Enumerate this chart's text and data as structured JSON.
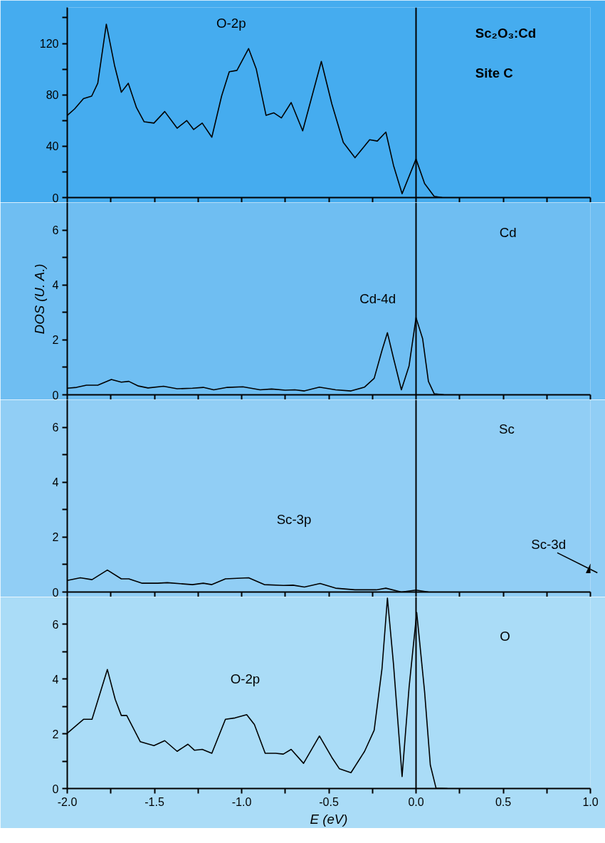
{
  "chart_data": [
    {
      "type": "line",
      "x": [
        -2.0,
        -1.958,
        -1.907,
        -1.86,
        -1.825,
        -1.776,
        -1.729,
        -1.69,
        -1.65,
        -1.603,
        -1.559,
        -1.503,
        -1.441,
        -1.37,
        -1.315,
        -1.275,
        -1.226,
        -1.171,
        -1.115,
        -1.071,
        -1.027,
        -0.96,
        -0.916,
        -0.86,
        -0.816,
        -0.772,
        -0.716,
        -0.65,
        -0.543,
        -0.483,
        -0.417,
        -0.35,
        -0.266,
        -0.222,
        -0.173,
        -0.129,
        -0.08,
        0.0,
        0.049,
        0.104,
        0.15
      ],
      "series": [
        {
          "color": "#000000",
          "values": [
            64,
            69,
            77,
            79,
            89,
            135,
            103,
            82,
            89,
            70,
            59,
            58,
            67,
            54,
            60,
            53,
            58,
            47,
            79,
            98,
            99,
            116,
            100,
            64,
            66,
            62,
            74,
            52,
            106,
            73,
            43,
            31,
            45,
            44,
            51,
            25,
            3,
            30,
            11,
            1,
            0
          ]
        }
      ],
      "xlim": [
        -2,
        1
      ],
      "xticks": [
        -2,
        {
          "value": -1.75,
          "label": null
        },
        -1.5,
        {
          "value": -1.25,
          "label": null
        },
        -1,
        {
          "value": -0.75,
          "label": null
        },
        -0.5,
        {
          "value": -0.25,
          "label": null
        },
        0,
        {
          "value": 0.25,
          "label": null
        },
        0.5,
        {
          "value": 0.75,
          "label": null
        },
        1
      ],
      "ylim": [
        0,
        148
      ],
      "yticks": [
        0,
        {
          "value": 20,
          "label": null
        },
        40,
        {
          "value": 60,
          "label": null
        },
        80,
        {
          "value": 100,
          "label": null
        },
        120,
        {
          "value": 140,
          "label": null
        }
      ],
      "tick_labels": "y",
      "grid": false,
      "marker": "none",
      "line_style": "solid",
      "ref_lines": [
        {
          "axis": "x",
          "value": 0,
          "color": "#000000"
        }
      ],
      "annotations": [
        "O-2p",
        "Sc₂O₃:Cd",
        "Site C"
      ]
    },
    {
      "type": "line",
      "x": [
        -2.0,
        -1.947,
        -1.89,
        -1.825,
        -1.747,
        -1.69,
        -1.647,
        -1.592,
        -1.537,
        -1.448,
        -1.37,
        -1.282,
        -1.22,
        -1.16,
        -1.082,
        -0.993,
        -0.894,
        -0.828,
        -0.75,
        -0.695,
        -0.64,
        -0.554,
        -0.461,
        -0.373,
        -0.295,
        -0.24,
        -0.195,
        -0.164,
        -0.129,
        -0.084,
        -0.04,
        0.0,
        0.038,
        0.071,
        0.104,
        0.16
      ],
      "series": [
        {
          "color": "#000000",
          "values": [
            0.24,
            0.27,
            0.35,
            0.35,
            0.56,
            0.46,
            0.49,
            0.32,
            0.25,
            0.31,
            0.22,
            0.24,
            0.27,
            0.18,
            0.27,
            0.29,
            0.18,
            0.21,
            0.17,
            0.18,
            0.14,
            0.28,
            0.18,
            0.14,
            0.28,
            0.6,
            1.62,
            2.26,
            1.33,
            0.18,
            1.05,
            2.81,
            2.04,
            0.49,
            0.04,
            0
          ]
        }
      ],
      "xlim": [
        -2,
        1
      ],
      "xticks": [
        -2,
        {
          "value": -1.75,
          "label": null
        },
        -1.5,
        {
          "value": -1.25,
          "label": null
        },
        -1,
        {
          "value": -0.75,
          "label": null
        },
        -0.5,
        {
          "value": -0.25,
          "label": null
        },
        0,
        {
          "value": 0.25,
          "label": null
        },
        0.5,
        {
          "value": 0.75,
          "label": null
        },
        1
      ],
      "ylim": [
        0,
        7
      ],
      "yticks": [
        0,
        {
          "value": 1,
          "label": null
        },
        2,
        {
          "value": 3,
          "label": null
        },
        4,
        {
          "value": 5,
          "label": null
        },
        6
      ],
      "ylabel": "DOS (U. A.)",
      "tick_labels": "y",
      "grid": false,
      "marker": "none",
      "line_style": "solid",
      "ref_lines": [
        {
          "axis": "x",
          "value": 0,
          "color": "#000000"
        }
      ],
      "annotations": [
        "Cd",
        "Cd-4d"
      ]
    },
    {
      "type": "line",
      "x": [
        -2.0,
        -1.925,
        -1.858,
        -1.77,
        -1.69,
        -1.647,
        -1.57,
        -1.481,
        -1.426,
        -1.282,
        -1.22,
        -1.171,
        -1.093,
        -0.96,
        -0.87,
        -0.76,
        -0.705,
        -0.64,
        -0.55,
        -0.461,
        -0.35,
        -0.228,
        -0.173,
        -0.084,
        0.0,
        0.071
      ],
      "series": [
        {
          "color": "#000000",
          "values": [
            0.42,
            0.52,
            0.45,
            0.8,
            0.48,
            0.48,
            0.32,
            0.32,
            0.34,
            0.27,
            0.32,
            0.27,
            0.48,
            0.52,
            0.27,
            0.24,
            0.25,
            0.18,
            0.31,
            0.14,
            0.08,
            0.08,
            0.14,
            0,
            0.07,
            0
          ]
        }
      ],
      "xlim": [
        -2,
        1
      ],
      "xticks": [
        -2,
        {
          "value": -1.75,
          "label": null
        },
        -1.5,
        {
          "value": -1.25,
          "label": null
        },
        -1,
        {
          "value": -0.75,
          "label": null
        },
        -0.5,
        {
          "value": -0.25,
          "label": null
        },
        0,
        {
          "value": 0.25,
          "label": null
        },
        0.5,
        {
          "value": 0.75,
          "label": null
        },
        1
      ],
      "ylim": [
        0,
        7
      ],
      "yticks": [
        0,
        {
          "value": 1,
          "label": null
        },
        2,
        {
          "value": 3,
          "label": null
        },
        4,
        {
          "value": 5,
          "label": null
        },
        6
      ],
      "tick_labels": "y",
      "grid": false,
      "marker": "none",
      "line_style": "solid",
      "ref_lines": [
        {
          "axis": "x",
          "value": 0,
          "color": "#000000"
        }
      ],
      "annotations": [
        "Sc",
        "Sc-3p",
        "Sc-3d"
      ]
    },
    {
      "type": "line",
      "x": [
        -2.0,
        -1.907,
        -1.858,
        -1.77,
        -1.725,
        -1.69,
        -1.659,
        -1.581,
        -1.503,
        -1.441,
        -1.37,
        -1.308,
        -1.271,
        -1.226,
        -1.171,
        -1.093,
        -1.038,
        -0.971,
        -0.927,
        -0.865,
        -0.805,
        -0.761,
        -0.716,
        -0.645,
        -0.554,
        -0.483,
        -0.439,
        -0.373,
        -0.295,
        -0.24,
        -0.195,
        -0.164,
        -0.129,
        -0.08,
        -0.04,
        0.004,
        0.049,
        0.082,
        0.115,
        0.18
      ],
      "series": [
        {
          "color": "#000000",
          "values": [
            2.02,
            2.53,
            2.53,
            4.35,
            3.26,
            2.67,
            2.67,
            1.71,
            1.57,
            1.75,
            1.36,
            1.62,
            1.4,
            1.43,
            1.29,
            2.53,
            2.58,
            2.7,
            2.34,
            1.29,
            1.29,
            1.26,
            1.43,
            0.92,
            1.92,
            1.14,
            0.72,
            0.58,
            1.36,
            2.13,
            4.39,
            6.96,
            4.53,
            0.44,
            3.69,
            6.43,
            3.55,
            0.86,
            0.01,
            0
          ]
        }
      ],
      "xlim": [
        -2,
        1
      ],
      "xticks": [
        {
          "value": -2,
          "label": "-2.0"
        },
        {
          "value": -1.75,
          "label": null
        },
        {
          "value": -1.5,
          "label": "-1.5"
        },
        {
          "value": -1.25,
          "label": null
        },
        {
          "value": -1,
          "label": "-1.0"
        },
        {
          "value": -0.75,
          "label": null
        },
        {
          "value": -0.5,
          "label": "-0.5"
        },
        {
          "value": -0.25,
          "label": null
        },
        {
          "value": 0,
          "label": "0.0"
        },
        {
          "value": 0.25,
          "label": null
        },
        {
          "value": 0.5,
          "label": "0.5"
        },
        {
          "value": 0.75,
          "label": null
        },
        {
          "value": 1,
          "label": "1.0"
        }
      ],
      "ylim": [
        0,
        7
      ],
      "yticks": [
        0,
        {
          "value": 1,
          "label": null
        },
        2,
        {
          "value": 3,
          "label": null
        },
        4,
        {
          "value": 5,
          "label": null
        },
        6
      ],
      "xlabel": "E (eV)",
      "grid": false,
      "marker": "none",
      "line_style": "solid",
      "ref_lines": [
        {
          "axis": "x",
          "value": 0,
          "color": "#000000"
        }
      ],
      "annotations": [
        "O",
        "O-2p"
      ]
    }
  ]
}
